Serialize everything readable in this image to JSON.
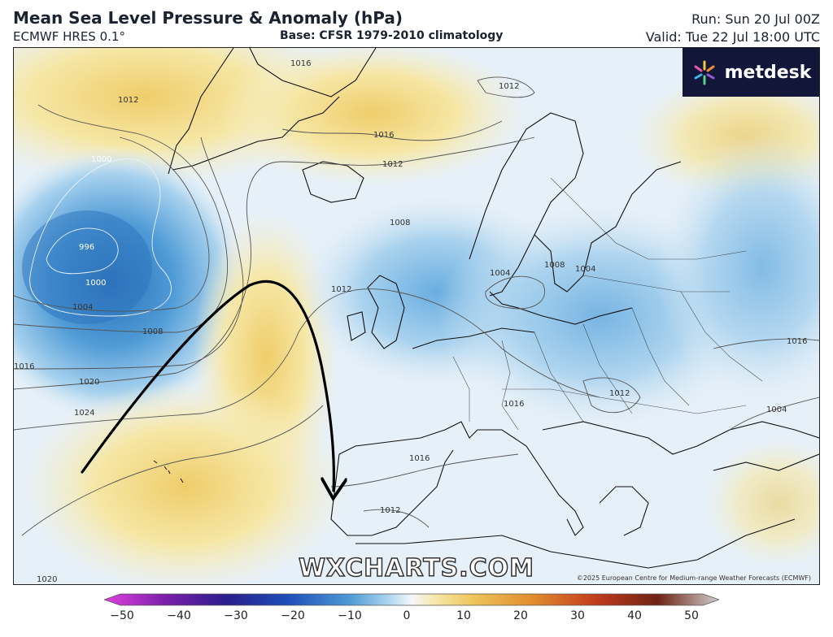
{
  "header": {
    "title": "Mean Sea Level Pressure & Anomaly (hPa)",
    "subtitle": "ECMWF HRES 0.1°",
    "base": "Base: CFSR 1979-2010 climatology",
    "run": "Run: Sun 20 Jul 00Z",
    "valid": "Valid: Tue 22 Jul 18:00 UTC"
  },
  "logo": {
    "text": "metdesk",
    "icon": "metdesk-logo-icon"
  },
  "watermark": "WXCHARTS.COM",
  "copyright": "©2025 European Centre for Medium-range Weather Forecasts (ECMWF)",
  "isobar_labels": {
    "l996": "996",
    "l1000a": "1000",
    "l1000b": "1000",
    "l1004a": "1004",
    "l1004b": "1004",
    "l1004c": "1004",
    "l1004d": "1004",
    "l1008a": "1008",
    "l1008b": "1008",
    "l1008c": "1008",
    "l1012a": "1012",
    "l1012b": "1012",
    "l1012c": "1012",
    "l1012d": "1012",
    "l1012e": "1012",
    "l1012f": "1012",
    "l1016a": "1016",
    "l1016b": "1016",
    "l1016c": "1016",
    "l1016d": "1016",
    "l1016e": "1016",
    "l1016f": "1016",
    "l1020a": "1020",
    "l1020b": "1020",
    "l1024": "1024"
  },
  "colorbar": {
    "ticks": [
      "−50",
      "−40",
      "−30",
      "−20",
      "−10",
      "0",
      "10",
      "20",
      "30",
      "40",
      "50"
    ],
    "colors": {
      "neg50": "#e040e0",
      "neg40": "#7a1fa8",
      "neg30": "#2a1e8c",
      "neg20": "#1f4fb8",
      "neg10": "#4f9bd6",
      "neg5": "#a9d2ee",
      "zero": "#f4f7fb",
      "pos5": "#f6e7a6",
      "pos10": "#eec55a",
      "pos20": "#e08a2c",
      "pos30": "#c23a1e",
      "pos40": "#6e2214",
      "pos50": "#cfcfcf"
    }
  }
}
